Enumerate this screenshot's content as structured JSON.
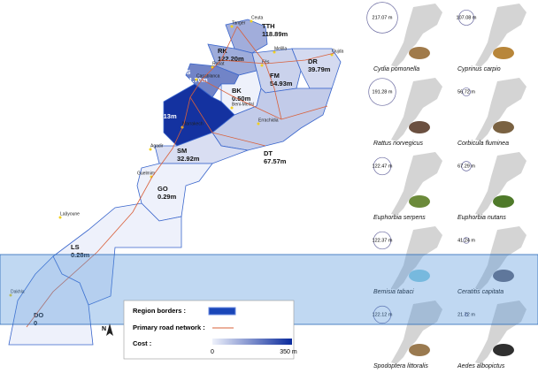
{
  "map": {
    "regions": [
      {
        "code": "TTH",
        "cost": 118.89,
        "cost_label": "118.89m"
      },
      {
        "code": "RK",
        "cost": 122.2,
        "cost_label": "122.20m"
      },
      {
        "code": "CS",
        "cost": 191.7,
        "cost_label": "191.70m"
      },
      {
        "code": "FM",
        "cost": 54.93,
        "cost_label": "54.93m"
      },
      {
        "code": "DR",
        "cost": 39.79,
        "cost_label": "39.79m"
      },
      {
        "code": "BK",
        "cost": 0.5,
        "cost_label": "0.50m"
      },
      {
        "code": "MS",
        "cost": 335.13,
        "cost_label": "335.13m"
      },
      {
        "code": "DT",
        "cost": 67.57,
        "cost_label": "67.57m"
      },
      {
        "code": "SM",
        "cost": 32.92,
        "cost_label": "32.92m"
      },
      {
        "code": "GO",
        "cost": 0.29,
        "cost_label": "0.29m"
      },
      {
        "code": "LS",
        "cost": 0.28,
        "cost_label": "0.28m"
      },
      {
        "code": "DO",
        "cost": 0,
        "cost_label": "0"
      }
    ],
    "cities": [
      "Tanger",
      "Ceuta",
      "Melilla",
      "Oujda",
      "Rabat",
      "Casablanca",
      "Fès",
      "Beni-Mellal",
      "Marrakech",
      "Errachidia",
      "Agadir",
      "Guelmim",
      "Laâyoune",
      "Dakhla"
    ],
    "north": "N",
    "legend": {
      "borders": "Region borders :",
      "roads": "Primary road network :",
      "cost": "Cost :",
      "scale_min": 0,
      "scale_min_label": "0",
      "scale_max": 350,
      "scale_max_label": "350 m",
      "color_low": "#eef1fb",
      "color_high": "#0a2a9c"
    }
  },
  "species": [
    {
      "name": "Cydia pomonella",
      "cost": 217.07,
      "cost_label": "217.07 m",
      "icon_color": "#a07a4a"
    },
    {
      "name": "Cyprinus carpio",
      "cost": 107.08,
      "cost_label": "107.08 m",
      "icon_color": "#b8863a"
    },
    {
      "name": "Rattus norvegicus",
      "cost": 191.28,
      "cost_label": "191.28 m",
      "icon_color": "#6b5040"
    },
    {
      "name": "Corbicula fluminea",
      "cost": 56.72,
      "cost_label": "56.72 m",
      "icon_color": "#7a6242"
    },
    {
      "name": "Euphorbia serpens",
      "cost": 122.47,
      "cost_label": "122.47 m",
      "icon_color": "#6b8a3a"
    },
    {
      "name": "Euphorbia nutans",
      "cost": 67.29,
      "cost_label": "67.29 m",
      "icon_color": "#4f7a2a"
    },
    {
      "name": "Bemisia tabaci",
      "cost": 122.37,
      "cost_label": "122.37 m",
      "icon_color": "#8fd0e0"
    },
    {
      "name": "Ceratitis capitata",
      "cost": 41.24,
      "cost_label": "41.24 m",
      "icon_color": "#6a6a7a"
    },
    {
      "name": "Spodoptera littoralis",
      "cost": 122.12,
      "cost_label": "122.12 m",
      "icon_color": "#9a7a50"
    },
    {
      "name": "Aedes albopictus",
      "cost": 21.72,
      "cost_label": "21.72 m",
      "icon_color": "#303030"
    }
  ]
}
